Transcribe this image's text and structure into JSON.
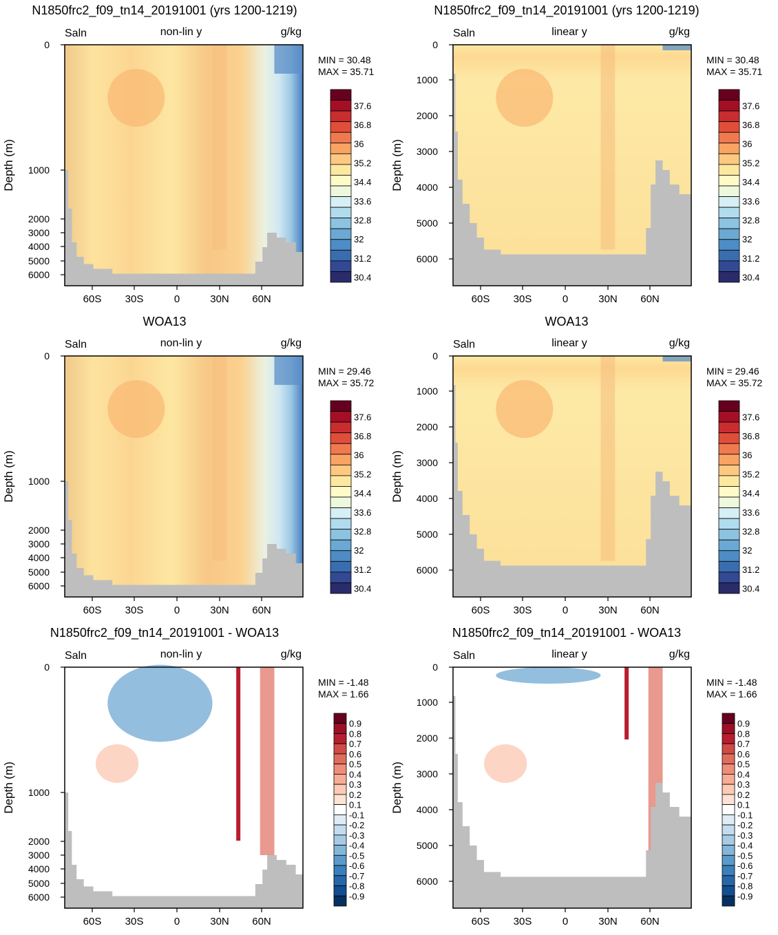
{
  "chart_data": [
    {
      "type": "heatmap",
      "title": "N1850frc2_f09_tn14_20191001 (yrs 1200-1219)",
      "left_label": "Saln",
      "center_label": "non-lin y",
      "right_label": "g/kg",
      "ylabel": "Depth (m)",
      "yticks": [
        "0",
        "1000",
        "2000",
        "3000",
        "4000",
        "5000",
        "6000"
      ],
      "xticks": [
        "60S",
        "30S",
        "0",
        "30N",
        "60N"
      ],
      "min_label": "MIN =  30.48",
      "max_label": "MAX =  35.71",
      "colorbar_labels": [
        "37.6",
        "36.8",
        "36",
        "35.2",
        "34.4",
        "33.6",
        "32.8",
        "32",
        "31.2",
        "30.4"
      ]
    },
    {
      "type": "heatmap",
      "title": "N1850frc2_f09_tn14_20191001 (yrs 1200-1219)",
      "left_label": "Saln",
      "center_label": "linear y",
      "right_label": "g/kg",
      "ylabel": "Depth (m)",
      "yticks": [
        "0",
        "1000",
        "2000",
        "3000",
        "4000",
        "5000",
        "6000"
      ],
      "xticks": [
        "60S",
        "30S",
        "0",
        "30N",
        "60N"
      ],
      "min_label": "MIN =  30.48",
      "max_label": "MAX =  35.71",
      "colorbar_labels": [
        "37.6",
        "36.8",
        "36",
        "35.2",
        "34.4",
        "33.6",
        "32.8",
        "32",
        "31.2",
        "30.4"
      ]
    },
    {
      "type": "heatmap",
      "title": "WOA13",
      "left_label": "Saln",
      "center_label": "non-lin y",
      "right_label": "g/kg",
      "ylabel": "Depth (m)",
      "yticks": [
        "0",
        "1000",
        "2000",
        "3000",
        "4000",
        "5000",
        "6000"
      ],
      "xticks": [
        "60S",
        "30S",
        "0",
        "30N",
        "60N"
      ],
      "min_label": "MIN =  29.46",
      "max_label": "MAX =  35.72",
      "colorbar_labels": [
        "37.6",
        "36.8",
        "36",
        "35.2",
        "34.4",
        "33.6",
        "32.8",
        "32",
        "31.2",
        "30.4"
      ]
    },
    {
      "type": "heatmap",
      "title": "WOA13",
      "left_label": "Saln",
      "center_label": "linear y",
      "right_label": "g/kg",
      "ylabel": "Depth (m)",
      "yticks": [
        "0",
        "1000",
        "2000",
        "3000",
        "4000",
        "5000",
        "6000"
      ],
      "xticks": [
        "60S",
        "30S",
        "0",
        "30N",
        "60N"
      ],
      "min_label": "MIN =  29.46",
      "max_label": "MAX =  35.72",
      "colorbar_labels": [
        "37.6",
        "36.8",
        "36",
        "35.2",
        "34.4",
        "33.6",
        "32.8",
        "32",
        "31.2",
        "30.4"
      ]
    },
    {
      "type": "heatmap",
      "title": "N1850frc2_f09_tn14_20191001 - WOA13",
      "left_label": "Saln",
      "center_label": "non-lin y",
      "right_label": "g/kg",
      "ylabel": "Depth (m)",
      "yticks": [
        "0",
        "1000",
        "2000",
        "3000",
        "4000",
        "5000",
        "6000"
      ],
      "xticks": [
        "60S",
        "30S",
        "0",
        "30N",
        "60N"
      ],
      "min_label": "MIN =  -1.48",
      "max_label": "MAX =   1.66",
      "colorbar_labels": [
        "0.9",
        "0.8",
        "0.7",
        "0.6",
        "0.5",
        "0.4",
        "0.3",
        "0.2",
        "0.1",
        "-0.1",
        "-0.2",
        "-0.3",
        "-0.4",
        "-0.5",
        "-0.6",
        "-0.7",
        "-0.8",
        "-0.9"
      ]
    },
    {
      "type": "heatmap",
      "title": "N1850frc2_f09_tn14_20191001 - WOA13",
      "left_label": "Saln",
      "center_label": "linear y",
      "right_label": "g/kg",
      "ylabel": "Depth (m)",
      "yticks": [
        "0",
        "1000",
        "2000",
        "3000",
        "4000",
        "5000",
        "6000"
      ],
      "xticks": [
        "60S",
        "30S",
        "0",
        "30N",
        "60N"
      ],
      "min_label": "MIN =  -1.48",
      "max_label": "MAX =   1.66",
      "colorbar_labels": [
        "0.9",
        "0.8",
        "0.7",
        "0.6",
        "0.5",
        "0.4",
        "0.3",
        "0.2",
        "0.1",
        "-0.1",
        "-0.2",
        "-0.3",
        "-0.4",
        "-0.5",
        "-0.6",
        "-0.7",
        "-0.8",
        "-0.9"
      ]
    }
  ],
  "colors": {
    "salt_scale": [
      "#67001f",
      "#a50f26",
      "#c92d2f",
      "#e04e39",
      "#f07a50",
      "#f9a463",
      "#fdc981",
      "#fde8a0",
      "#fffbc8",
      "#eef8dd",
      "#d6eff4",
      "#b1dced",
      "#8cc3e1",
      "#6ba9d4",
      "#4d8cc4",
      "#3a6db0",
      "#334993",
      "#2a2b6a"
    ],
    "diff_scale": [
      "#67001f",
      "#9c0f25",
      "#b81e2f",
      "#d04a46",
      "#e06d5c",
      "#ee8e78",
      "#f7ad95",
      "#fccab5",
      "#fde3d3",
      "#ffffff",
      "#dfecf5",
      "#c5dcee",
      "#a7cbe5",
      "#84b6d9",
      "#5b9bcb",
      "#3b80bc",
      "#2766a8",
      "#154e90",
      "#053061"
    ],
    "land": "#bebebe"
  }
}
